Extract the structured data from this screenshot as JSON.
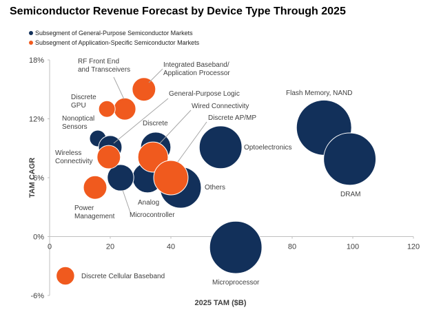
{
  "chart_data": {
    "type": "bubble",
    "title": "Semiconductor Revenue Forecast by Device Type Through 2025",
    "x_label": "2025 TAM ($B)",
    "y_label": "TAM CAGR",
    "xlim": [
      0,
      120
    ],
    "ylim": [
      -6,
      18
    ],
    "xticks": [
      0,
      20,
      40,
      60,
      80,
      100,
      120
    ],
    "yticks": [
      {
        "value": -6,
        "label": "-6%"
      },
      {
        "value": 0,
        "label": "0%"
      },
      {
        "value": 6,
        "label": "6%"
      },
      {
        "value": 12,
        "label": "12%"
      },
      {
        "value": 18,
        "label": "18%"
      }
    ],
    "series": [
      {
        "name": "Subsegment of General-Purpose Semiconductor Markets",
        "color": "#12305a",
        "labels": [
          "Flash Memory, NAND",
          "DRAM",
          "Optoelectronics",
          "Microprocessor",
          "Others",
          "Analog",
          "Discrete",
          "Microcontroller",
          "Nonoptical\nSensors",
          "General-Purpose  Logic"
        ],
        "x": [
          90.5,
          99,
          56.4,
          61.4,
          43.2,
          32.3,
          35,
          23.4,
          15.9,
          20
        ],
        "values": [
          11.1,
          7.9,
          9.1,
          -1.1,
          5.0,
          6.0,
          9.1,
          6.0,
          10.0,
          9.1
        ],
        "sizes": [
          100,
          90,
          60,
          90,
          56,
          30,
          30,
          23,
          9,
          18
        ]
      },
      {
        "name": "Subsegment of Application-Specific Semiconductor Markets",
        "color": "#f05a1e",
        "labels": [
          "Integrated Baseband/\nApplication Processor",
          "RF Front End\nand Transceivers",
          "Discrete\nGPU",
          "Wireless\nConnectivity",
          "Power\nManagement",
          "Wired Connectivity",
          "Discrete AP/MP",
          "Discrete Cellular Baseband"
        ],
        "x": [
          31.1,
          24.8,
          18.9,
          19.5,
          15,
          34.1,
          40,
          5.2
        ],
        "values": [
          15.0,
          13.0,
          13.0,
          8.1,
          5.0,
          8.1,
          6.0,
          -4.0
        ],
        "sizes": [
          18,
          16,
          9,
          18,
          18,
          30,
          39,
          11
        ]
      }
    ]
  }
}
